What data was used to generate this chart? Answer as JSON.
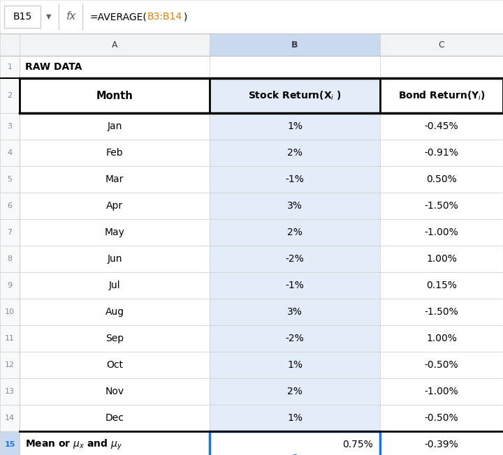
{
  "formula_bar_cell": "B15",
  "formula_bar_formula": "=AVERAGE(B3:B14)",
  "col_headers": [
    "A",
    "B",
    "C"
  ],
  "months": [
    "Jan",
    "Feb",
    "Mar",
    "Apr",
    "May",
    "Jun",
    "Jul",
    "Aug",
    "Sep",
    "Oct",
    "Nov",
    "Dec"
  ],
  "stock_returns": [
    "1%",
    "2%",
    "-1%",
    "3%",
    "2%",
    "-2%",
    "-1%",
    "3%",
    "-2%",
    "1%",
    "2%",
    "1%"
  ],
  "bond_returns": [
    "-0.45%",
    "-0.91%",
    "0.50%",
    "-1.50%",
    "-1.00%",
    "1.00%",
    "0.15%",
    "-1.50%",
    "1.00%",
    "-0.50%",
    "-1.00%",
    "-0.50%"
  ],
  "mean_stock": "0.75%",
  "mean_bond": "-0.39%",
  "formula_orange": "#e67e00",
  "formula_gray": "#5f6368",
  "border_dark": "#000000",
  "border_light": "#d0d0d0",
  "row_num_bg": "#f8f9fa",
  "row_num_selected_bg": "#c9d9f0",
  "selected_col_header_bg": "#c9d9f0",
  "col_header_bg": "#f1f3f4",
  "selected_cell_bg": "#e3edf9",
  "blue_accent": "#1a73e8",
  "row_num_color": "#888888"
}
